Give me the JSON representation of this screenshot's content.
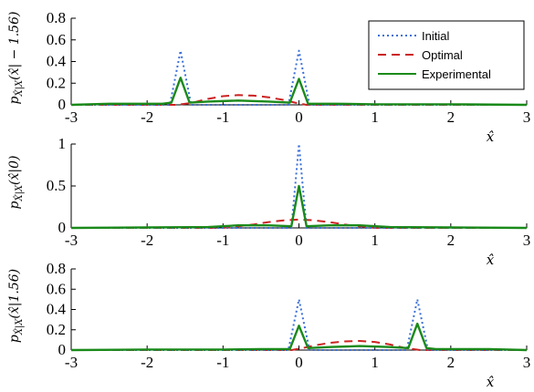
{
  "colors": {
    "initial": "#3a6fd8",
    "optimal": "#cc2222",
    "experimental": "#1a8a1a",
    "axis": "#000000"
  },
  "legend": {
    "placement": "top-right of first panel",
    "entries": [
      {
        "label": "Initial",
        "style": "dotted",
        "color": "#3a6fd8"
      },
      {
        "label": "Optimal",
        "style": "dashed",
        "color": "#cc2222"
      },
      {
        "label": "Experimental",
        "style": "solid",
        "color": "#1a8a1a"
      }
    ]
  },
  "chart_data": [
    {
      "type": "line",
      "ylabel": "p_{X̂|X}(x̂|−1.56)",
      "ylabel_main": "p",
      "ylabel_sub": "X̂|X",
      "ylabel_arg": "(x̂| − 1.56)",
      "xlabel": "x̂",
      "xlim": [
        -3,
        3
      ],
      "ylim": [
        0,
        0.8
      ],
      "xticks": [
        -3,
        -2,
        -1,
        0,
        1,
        2,
        3
      ],
      "xtick_labels": [
        "-3",
        "-2",
        "-1",
        "0",
        "1",
        "2",
        "3"
      ],
      "yticks": [
        0,
        0.2,
        0.4,
        0.6,
        0.8
      ],
      "ytick_labels": [
        "0",
        "0.2",
        "0.4",
        "0.6",
        "0.8"
      ],
      "series": [
        {
          "name": "Initial",
          "x": [
            -3,
            -1.7,
            -1.56,
            -1.42,
            -0.14,
            0,
            0.14,
            3
          ],
          "y": [
            0,
            0,
            0.5,
            0,
            0,
            0.5,
            0,
            0
          ]
        },
        {
          "name": "Optimal",
          "x": [
            -3,
            -1.6,
            -1.4,
            -1.2,
            -1.0,
            -0.8,
            -0.6,
            -0.4,
            -0.2,
            -0.05,
            0.1,
            3
          ],
          "y": [
            0,
            0,
            0.02,
            0.055,
            0.08,
            0.09,
            0.085,
            0.07,
            0.045,
            0.02,
            0,
            0
          ]
        },
        {
          "name": "Experimental",
          "x": [
            -3,
            -2.5,
            -1.8,
            -1.68,
            -1.56,
            -1.44,
            -1.2,
            -0.8,
            -0.4,
            -0.12,
            0,
            0.12,
            0.5,
            1.0,
            2.0,
            3
          ],
          "y": [
            0,
            0.01,
            0.01,
            0.02,
            0.25,
            0.02,
            0.03,
            0.04,
            0.03,
            0.02,
            0.24,
            0.01,
            0.01,
            0.005,
            0.005,
            0
          ]
        }
      ]
    },
    {
      "type": "line",
      "ylabel": "p_{X̂|X}(x̂|0)",
      "ylabel_main": "p",
      "ylabel_sub": "X̂|X",
      "ylabel_arg": "(x̂|0)",
      "xlabel": "x̂",
      "xlim": [
        -3,
        3
      ],
      "ylim": [
        0,
        1
      ],
      "xticks": [
        -3,
        -2,
        -1,
        0,
        1,
        2,
        3
      ],
      "xtick_labels": [
        "-3",
        "-2",
        "-1",
        "0",
        "1",
        "2",
        "3"
      ],
      "yticks": [
        0,
        0.5,
        1
      ],
      "ytick_labels": [
        "0",
        "0.5",
        "1"
      ],
      "series": [
        {
          "name": "Initial",
          "x": [
            -3,
            -0.1,
            0,
            0.1,
            3
          ],
          "y": [
            0,
            0,
            1,
            0,
            0
          ]
        },
        {
          "name": "Optimal",
          "x": [
            -3,
            -1.0,
            -0.8,
            -0.6,
            -0.4,
            -0.2,
            0,
            0.2,
            0.4,
            0.6,
            0.8,
            1.0,
            3
          ],
          "y": [
            0,
            0,
            0.02,
            0.04,
            0.07,
            0.09,
            0.1,
            0.09,
            0.07,
            0.04,
            0.02,
            0,
            0
          ]
        },
        {
          "name": "Experimental",
          "x": [
            -3,
            -2.0,
            -1.2,
            -0.8,
            -0.4,
            -0.1,
            0,
            0.1,
            0.4,
            0.8,
            1.2,
            2.0,
            3
          ],
          "y": [
            0,
            0.005,
            0.01,
            0.03,
            0.03,
            0.02,
            0.5,
            0.02,
            0.03,
            0.03,
            0.01,
            0.005,
            0
          ]
        }
      ]
    },
    {
      "type": "line",
      "ylabel": "p_{X̂|X}(x̂|1.56)",
      "ylabel_main": "p",
      "ylabel_sub": "X̂|X",
      "ylabel_arg": "(x̂|1.56)",
      "xlabel": "x̂",
      "xlim": [
        -3,
        3
      ],
      "ylim": [
        0,
        0.8
      ],
      "xticks": [
        -3,
        -2,
        -1,
        0,
        1,
        2,
        3
      ],
      "xtick_labels": [
        "-3",
        "-2",
        "-1",
        "0",
        "1",
        "2",
        "3"
      ],
      "yticks": [
        0,
        0.2,
        0.4,
        0.6,
        0.8
      ],
      "ytick_labels": [
        "0",
        "0.2",
        "0.4",
        "0.6",
        "0.8"
      ],
      "series": [
        {
          "name": "Initial",
          "x": [
            -3,
            -0.14,
            0,
            0.14,
            1.42,
            1.56,
            1.7,
            3
          ],
          "y": [
            0,
            0,
            0.5,
            0,
            0,
            0.5,
            0,
            0
          ]
        },
        {
          "name": "Optimal",
          "x": [
            -3,
            -0.1,
            0.05,
            0.2,
            0.4,
            0.6,
            0.8,
            1.0,
            1.2,
            1.4,
            1.6,
            3
          ],
          "y": [
            0,
            0,
            0.02,
            0.045,
            0.07,
            0.085,
            0.09,
            0.08,
            0.055,
            0.02,
            0,
            0
          ]
        },
        {
          "name": "Experimental",
          "x": [
            -3,
            -2.0,
            -1.0,
            -0.5,
            -0.12,
            0,
            0.12,
            0.4,
            0.8,
            1.2,
            1.44,
            1.56,
            1.68,
            1.8,
            2.5,
            3
          ],
          "y": [
            0,
            0.005,
            0.005,
            0.01,
            0.01,
            0.24,
            0.02,
            0.03,
            0.04,
            0.03,
            0.02,
            0.26,
            0.02,
            0.01,
            0.01,
            0
          ]
        }
      ]
    }
  ]
}
